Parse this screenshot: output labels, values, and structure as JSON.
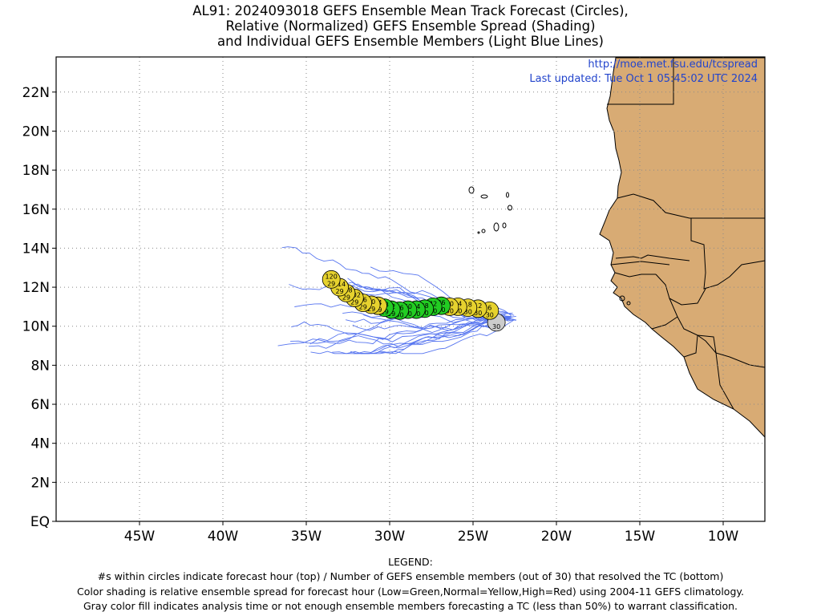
{
  "title": {
    "line1": "AL91: 2024093018 GEFS Ensemble Mean Track Forecast (Circles),",
    "line2": "Relative (Normalized) GEFS Ensemble Spread (Shading)",
    "line3": "and Individual GEFS Ensemble Members (Light Blue Lines)"
  },
  "credit": {
    "url": "http://moe.met.fsu.edu/tcspread",
    "updated": "Last updated: Tue Oct 1 05:45:02 UTC 2024"
  },
  "map": {
    "lon_range": [
      -50,
      -7.5
    ],
    "lat_range": [
      0,
      23.8
    ],
    "land_color": "#d8ab74",
    "ocean_color": "#ffffff",
    "grid_style": "dotted",
    "lat_ticks": [
      {
        "lat": 22,
        "label": "22N"
      },
      {
        "lat": 20,
        "label": "20N"
      },
      {
        "lat": 18,
        "label": "18N"
      },
      {
        "lat": 16,
        "label": "16N"
      },
      {
        "lat": 14,
        "label": "14N"
      },
      {
        "lat": 12,
        "label": "12N"
      },
      {
        "lat": 10,
        "label": "10N"
      },
      {
        "lat": 8,
        "label": "8N"
      },
      {
        "lat": 6,
        "label": "6N"
      },
      {
        "lat": 4,
        "label": "4N"
      },
      {
        "lat": 2,
        "label": "2N"
      },
      {
        "lat": 0,
        "label": "EQ"
      }
    ],
    "lon_ticks": [
      {
        "lon": -45,
        "label": "45W"
      },
      {
        "lon": -40,
        "label": "40W"
      },
      {
        "lon": -35,
        "label": "35W"
      },
      {
        "lon": -30,
        "label": "30W"
      },
      {
        "lon": -25,
        "label": "25W"
      },
      {
        "lon": -20,
        "label": "20W"
      },
      {
        "lon": -15,
        "label": "15W"
      },
      {
        "lon": -10,
        "label": "10W"
      }
    ]
  },
  "track": {
    "colors": {
      "gray": "#cccccc",
      "yellow": "#e6d22e",
      "green": "#22cc22"
    },
    "member_line_color": "#4466ee",
    "points": [
      {
        "lon": -23.6,
        "lat": 10.2,
        "top": "",
        "bottom": "30",
        "color": "gray"
      },
      {
        "lon": -24.0,
        "lat": 10.8,
        "top": "6",
        "bottom": "30",
        "color": "yellow"
      },
      {
        "lon": -24.7,
        "lat": 10.9,
        "top": "12",
        "bottom": "30",
        "color": "yellow"
      },
      {
        "lon": -25.3,
        "lat": 10.95,
        "top": "18",
        "bottom": "30",
        "color": "yellow"
      },
      {
        "lon": -25.9,
        "lat": 11.0,
        "top": "24",
        "bottom": "30",
        "color": "yellow"
      },
      {
        "lon": -26.4,
        "lat": 11.0,
        "top": "30",
        "bottom": "30",
        "color": "yellow"
      },
      {
        "lon": -26.9,
        "lat": 11.05,
        "top": "36",
        "bottom": "30",
        "color": "green"
      },
      {
        "lon": -27.4,
        "lat": 11.0,
        "top": "42",
        "bottom": "30",
        "color": "green"
      },
      {
        "lon": -27.9,
        "lat": 10.9,
        "top": "48",
        "bottom": "30",
        "color": "green"
      },
      {
        "lon": -28.4,
        "lat": 10.85,
        "top": "54",
        "bottom": "30",
        "color": "green"
      },
      {
        "lon": -28.9,
        "lat": 10.85,
        "top": "60",
        "bottom": "30",
        "color": "green"
      },
      {
        "lon": -29.4,
        "lat": 10.8,
        "top": "66",
        "bottom": "30",
        "color": "green"
      },
      {
        "lon": -29.9,
        "lat": 10.85,
        "top": "72",
        "bottom": "29",
        "color": "green"
      },
      {
        "lon": -30.3,
        "lat": 10.95,
        "top": "78",
        "bottom": "29",
        "color": "green"
      },
      {
        "lon": -30.7,
        "lat": 11.05,
        "top": "84",
        "bottom": "29",
        "color": "yellow"
      },
      {
        "lon": -31.1,
        "lat": 11.1,
        "top": "90",
        "bottom": "29",
        "color": "yellow"
      },
      {
        "lon": -31.6,
        "lat": 11.2,
        "top": "96",
        "bottom": "29",
        "color": "yellow"
      },
      {
        "lon": -32.1,
        "lat": 11.45,
        "top": "102",
        "bottom": "29",
        "color": "yellow"
      },
      {
        "lon": -32.6,
        "lat": 11.7,
        "top": "108",
        "bottom": "29",
        "color": "yellow"
      },
      {
        "lon": -33.0,
        "lat": 12.0,
        "top": "114",
        "bottom": "29",
        "color": "yellow"
      },
      {
        "lon": -33.5,
        "lat": 12.4,
        "top": "120",
        "bottom": "29",
        "color": "yellow"
      }
    ]
  },
  "legend": {
    "heading": "LEGEND:",
    "line1": "#s within circles indicate forecast hour (top) / Number of GEFS ensemble members (out of 30) that resolved the TC (bottom)",
    "line2": "Color shading is relative ensemble spread for forecast hour (Low=Green,Normal=Yellow,High=Red) using 2004-11 GEFS climatology.",
    "line3": "Gray color fill indicates analysis time or not enough ensemble members forecasting a TC (less than 50%) to warrant classification."
  }
}
